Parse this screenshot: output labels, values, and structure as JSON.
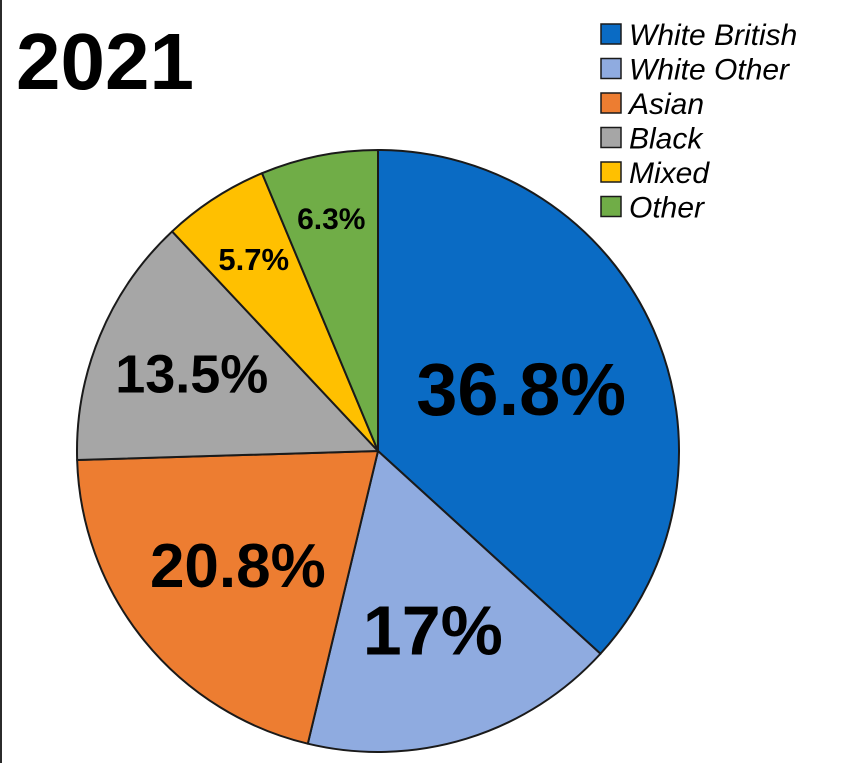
{
  "chart_data": {
    "type": "pie",
    "title": "2021",
    "categories": [
      "White British",
      "White Other",
      "Asian",
      "Black",
      "Mixed",
      "Other"
    ],
    "values": [
      36.8,
      17,
      20.8,
      13.5,
      5.7,
      6.3
    ],
    "value_labels": [
      "36.8%",
      "17%",
      "20.8%",
      "13.5%",
      "5.7%",
      "6.3%"
    ],
    "colors": [
      "#0a6bc4",
      "#8fabe0",
      "#ed7d31",
      "#a6a6a6",
      "#ffc000",
      "#70ad47"
    ],
    "legend": {
      "position": "top-right",
      "entries": [
        "White British",
        "White Other",
        "Asian",
        "Black",
        "Mixed",
        "Other"
      ]
    },
    "start_angle_deg": 0,
    "direction": "clockwise"
  }
}
